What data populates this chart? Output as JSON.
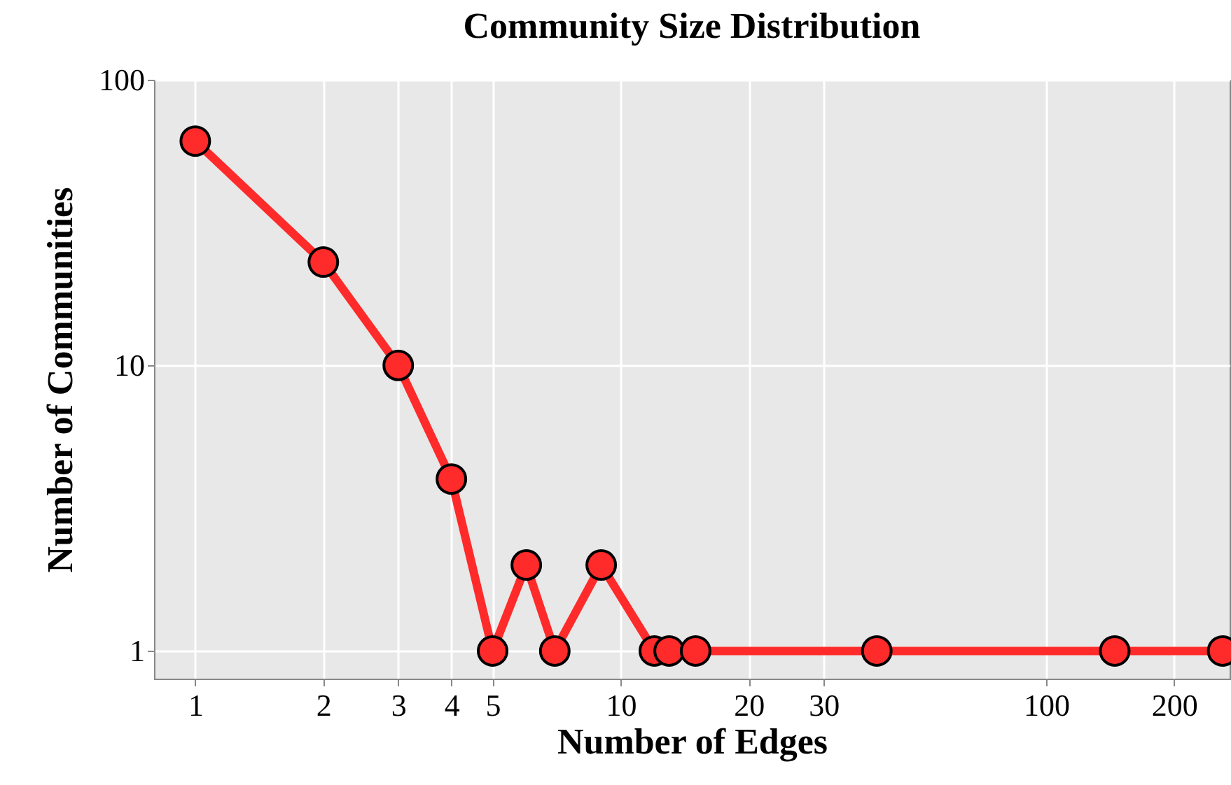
{
  "chart_data": {
    "type": "line",
    "title": "Community Size Distribution",
    "xlabel": "Number of Edges",
    "ylabel": "Number of Communities",
    "x": [
      1,
      2,
      3,
      4,
      5,
      6,
      7,
      9,
      12,
      13,
      15,
      40,
      145,
      260
    ],
    "series": [
      {
        "color": "#ff2a2a",
        "values": [
          61,
          23,
          10,
          4,
          1,
          2,
          1,
          2,
          1,
          1,
          1,
          1,
          1,
          1
        ]
      }
    ],
    "xlim": [
      0.8,
      270
    ],
    "ylim": [
      0.8,
      100
    ],
    "xticks": [
      1,
      2,
      3,
      4,
      5,
      10,
      20,
      30,
      100,
      200
    ],
    "yticks": [
      1,
      10,
      100
    ],
    "log": "xy",
    "grid": true,
    "marker": "circle",
    "line_style": "solid"
  }
}
